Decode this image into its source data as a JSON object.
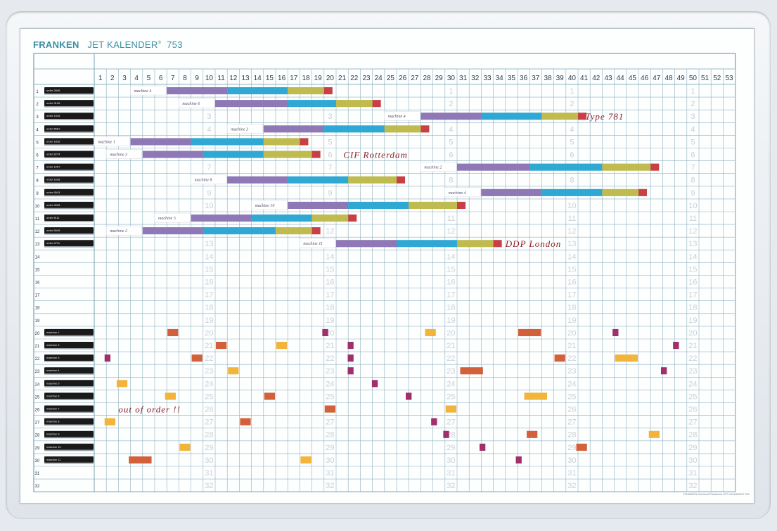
{
  "brand": {
    "name": "FRANKEN",
    "product": "JET KALENDER",
    "reg": "®",
    "number": "753"
  },
  "footer": "FRANKEN Serviced Planboard JET KALENDER 753",
  "weeks": [
    1,
    2,
    3,
    4,
    5,
    6,
    7,
    8,
    9,
    10,
    11,
    12,
    13,
    14,
    15,
    16,
    17,
    18,
    19,
    20,
    21,
    22,
    23,
    24,
    25,
    26,
    27,
    28,
    29,
    30,
    31,
    32,
    33,
    34,
    35,
    36,
    37,
    38,
    39,
    40,
    41,
    42,
    43,
    44,
    45,
    46,
    47,
    48,
    49,
    50,
    51,
    52,
    53
  ],
  "rows": [
    1,
    2,
    3,
    4,
    5,
    6,
    7,
    8,
    9,
    10,
    11,
    12,
    13,
    14,
    15,
    16,
    17,
    18,
    19,
    20,
    21,
    22,
    23,
    24,
    25,
    26,
    27,
    28,
    29,
    30,
    31,
    32
  ],
  "order_cards": [
    {
      "row": 1,
      "label": "order 2845"
    },
    {
      "row": 2,
      "label": "order 3126"
    },
    {
      "row": 3,
      "label": "order 1316"
    },
    {
      "row": 4,
      "label": "order 5661"
    },
    {
      "row": 5,
      "label": "order 1816"
    },
    {
      "row": 6,
      "label": "order 8274"
    },
    {
      "row": 7,
      "label": "order 1267"
    },
    {
      "row": 8,
      "label": "order 1638"
    },
    {
      "row": 9,
      "label": "order 6543"
    },
    {
      "row": 10,
      "label": "order 9028"
    },
    {
      "row": 11,
      "label": "order 8111"
    },
    {
      "row": 12,
      "label": "order 5049"
    },
    {
      "row": 13,
      "label": "order 4711"
    }
  ],
  "machine_cards": [
    {
      "row": 20,
      "label": "machine 1"
    },
    {
      "row": 21,
      "label": "machine 2"
    },
    {
      "row": 22,
      "label": "machine 3"
    },
    {
      "row": 23,
      "label": "machine 4"
    },
    {
      "row": 24,
      "label": "machine 5"
    },
    {
      "row": 25,
      "label": "machine 6"
    },
    {
      "row": 26,
      "label": "machine 7"
    },
    {
      "row": 27,
      "label": "machine 8"
    },
    {
      "row": 28,
      "label": "machine 9"
    },
    {
      "row": 29,
      "label": "machine 10"
    },
    {
      "row": 30,
      "label": "machine 11"
    }
  ],
  "phase_colors": {
    "purple": "#8e78b5",
    "blue": "#2fa8d4",
    "olive": "#bfbb4e",
    "red": "#c84046"
  },
  "schedules": [
    {
      "row": 1,
      "label": "machine 4",
      "start": 7,
      "segs": [
        5,
        5,
        3,
        0.7
      ]
    },
    {
      "row": 2,
      "label": "machine 6",
      "start": 11,
      "segs": [
        6,
        4,
        3,
        0.7
      ]
    },
    {
      "row": 3,
      "label": "machine 4",
      "start": 28,
      "segs": [
        5,
        5,
        3,
        0.7
      ]
    },
    {
      "row": 4,
      "label": "machine 3",
      "start": 15,
      "segs": [
        5,
        5,
        3,
        0.7
      ]
    },
    {
      "row": 5,
      "label": "machine 1",
      "start": 4,
      "segs": [
        5,
        6,
        3,
        0.7
      ]
    },
    {
      "row": 6,
      "label": "machine 3",
      "start": 5,
      "segs": [
        5,
        5,
        4,
        0.7
      ]
    },
    {
      "row": 7,
      "label": "machine 2",
      "start": 31,
      "segs": [
        6,
        6,
        4,
        0.7
      ]
    },
    {
      "row": 8,
      "label": "machine 8",
      "start": 12,
      "segs": [
        5,
        5,
        4,
        0.7
      ]
    },
    {
      "row": 9,
      "label": "machine 4",
      "start": 33,
      "segs": [
        5,
        5,
        3,
        0.7
      ]
    },
    {
      "row": 10,
      "label": "machine 10",
      "start": 17,
      "segs": [
        5,
        5,
        4,
        0.7
      ]
    },
    {
      "row": 11,
      "label": "machine 5",
      "start": 9,
      "segs": [
        5,
        5,
        3,
        0.7
      ]
    },
    {
      "row": 12,
      "label": "machine 2",
      "start": 5,
      "segs": [
        5,
        6,
        3,
        0.7
      ]
    },
    {
      "row": 13,
      "label": "machine 11",
      "start": 21,
      "segs": [
        5,
        5,
        3,
        0.7
      ]
    }
  ],
  "handwritten": [
    {
      "row": 3,
      "week": 41.6,
      "text": "Type 781"
    },
    {
      "row": 6,
      "week": 21.6,
      "text": "CIF Rotterdam"
    },
    {
      "row": 13,
      "week": 35,
      "text": "DDP London"
    },
    {
      "row": 26,
      "week": 3,
      "text": "out of order !!"
    }
  ],
  "markers": [
    {
      "row": 20,
      "week": 7,
      "w": 1,
      "color": "#d2613b"
    },
    {
      "row": 20,
      "week": 19.8,
      "w": 0.6,
      "color": "#a0306a"
    },
    {
      "row": 20,
      "week": 28.3,
      "w": 1,
      "color": "#f2b43a"
    },
    {
      "row": 20,
      "week": 36,
      "w": 2,
      "color": "#d2613b"
    },
    {
      "row": 20,
      "week": 43.8,
      "w": 0.6,
      "color": "#a0306a"
    },
    {
      "row": 21,
      "week": 11,
      "w": 1,
      "color": "#d2613b"
    },
    {
      "row": 21,
      "week": 16,
      "w": 1,
      "color": "#f2b43a"
    },
    {
      "row": 21,
      "week": 21.9,
      "w": 0.6,
      "color": "#a0306a"
    },
    {
      "row": 21,
      "week": 48.8,
      "w": 0.6,
      "color": "#a0306a"
    },
    {
      "row": 22,
      "week": 1.8,
      "w": 0.6,
      "color": "#a0306a"
    },
    {
      "row": 22,
      "week": 9,
      "w": 1,
      "color": "#d2613b"
    },
    {
      "row": 22,
      "week": 21.9,
      "w": 0.6,
      "color": "#a0306a"
    },
    {
      "row": 22,
      "week": 39,
      "w": 1,
      "color": "#d2613b"
    },
    {
      "row": 22,
      "week": 44,
      "w": 2,
      "color": "#f2b43a"
    },
    {
      "row": 23,
      "week": 12,
      "w": 1,
      "color": "#f2b43a"
    },
    {
      "row": 23,
      "week": 21.9,
      "w": 0.6,
      "color": "#a0306a"
    },
    {
      "row": 23,
      "week": 31.2,
      "w": 2,
      "color": "#d2613b"
    },
    {
      "row": 23,
      "week": 47.8,
      "w": 0.6,
      "color": "#a0306a"
    },
    {
      "row": 24,
      "week": 2.8,
      "w": 1,
      "color": "#f2b43a"
    },
    {
      "row": 24,
      "week": 23.9,
      "w": 0.6,
      "color": "#a0306a"
    },
    {
      "row": 25,
      "week": 6.8,
      "w": 1,
      "color": "#f2b43a"
    },
    {
      "row": 25,
      "week": 15,
      "w": 1,
      "color": "#d2613b"
    },
    {
      "row": 25,
      "week": 26.7,
      "w": 0.6,
      "color": "#a0306a"
    },
    {
      "row": 25,
      "week": 36.5,
      "w": 2,
      "color": "#f2b43a"
    },
    {
      "row": 26,
      "week": 20,
      "w": 1,
      "color": "#d2613b"
    },
    {
      "row": 26,
      "week": 30,
      "w": 1,
      "color": "#f2b43a"
    },
    {
      "row": 27,
      "week": 1.8,
      "w": 1,
      "color": "#f2b43a"
    },
    {
      "row": 27,
      "week": 13,
      "w": 1,
      "color": "#d2613b"
    },
    {
      "row": 27,
      "week": 28.8,
      "w": 0.6,
      "color": "#a0306a"
    },
    {
      "row": 28,
      "week": 29.8,
      "w": 0.6,
      "color": "#a0306a"
    },
    {
      "row": 28,
      "week": 36.7,
      "w": 1,
      "color": "#d2613b"
    },
    {
      "row": 28,
      "week": 46.8,
      "w": 1,
      "color": "#f2b43a"
    },
    {
      "row": 29,
      "week": 8,
      "w": 1,
      "color": "#f2b43a"
    },
    {
      "row": 29,
      "week": 32.8,
      "w": 0.6,
      "color": "#a0306a"
    },
    {
      "row": 29,
      "week": 40.8,
      "w": 1,
      "color": "#d2613b"
    },
    {
      "row": 30,
      "week": 3.8,
      "w": 2,
      "color": "#d2613b"
    },
    {
      "row": 30,
      "week": 18,
      "w": 1,
      "color": "#f2b43a"
    },
    {
      "row": 30,
      "week": 35.8,
      "w": 0.6,
      "color": "#a0306a"
    }
  ]
}
